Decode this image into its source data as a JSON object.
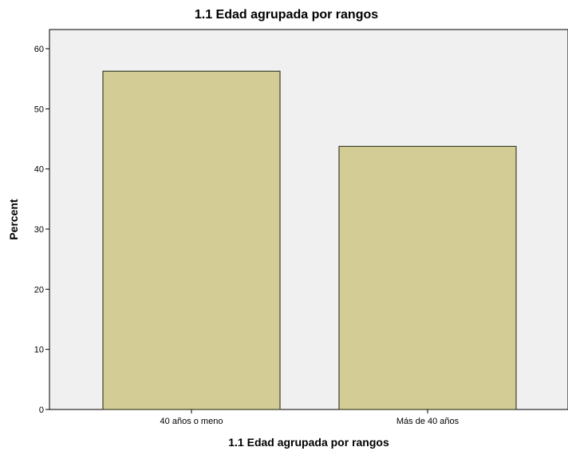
{
  "chart_data": {
    "type": "bar",
    "title": "1.1 Edad agrupada por rangos",
    "xlabel": "1.1 Edad agrupada por rangos",
    "ylabel": "Percent",
    "categories": [
      "40 años o meno",
      "Más de 40 años"
    ],
    "values": [
      56.25,
      43.75
    ],
    "ylim": [
      0,
      62
    ],
    "yticks": [
      0,
      10,
      20,
      30,
      40,
      50,
      60
    ],
    "grid": false,
    "legend": "none",
    "bar_color": "#d3cd95",
    "bar_stroke": "#3c3c28",
    "plot_background": "#f0f0f0"
  }
}
